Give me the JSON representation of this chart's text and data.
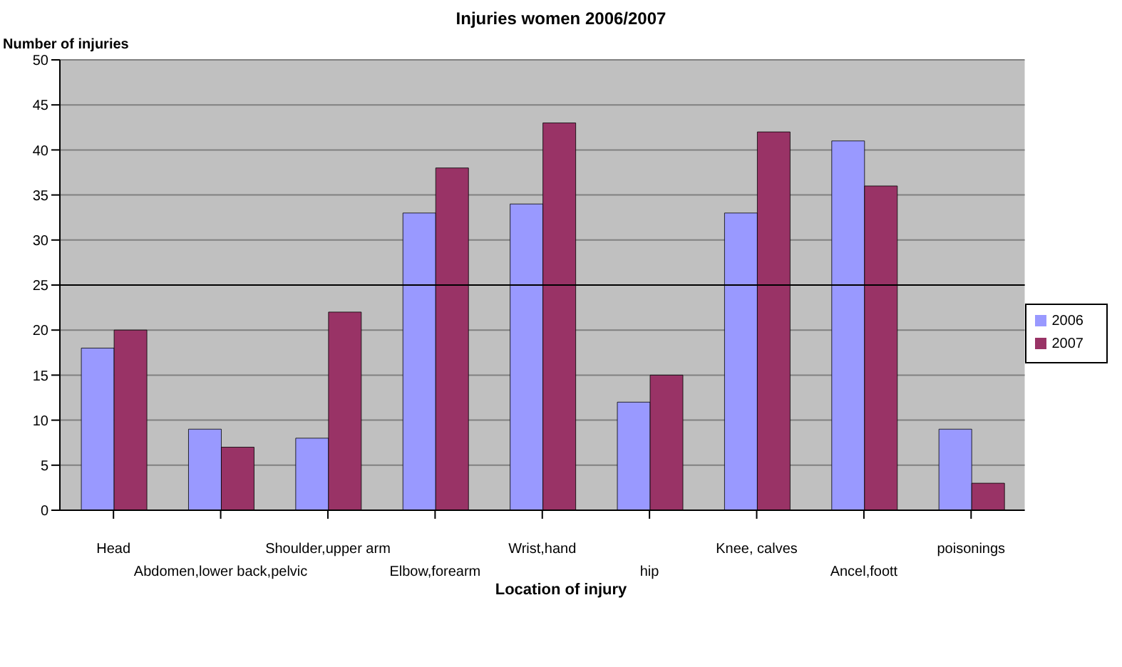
{
  "chart_data": {
    "type": "bar",
    "title": "Injuries women 2006/2007",
    "xlabel": "Location of injury",
    "ylabel": "Number of injuries",
    "categories": [
      "Head",
      "Abdomen,lower back,pelvic",
      "Shoulder,upper arm",
      "Elbow,forearm",
      "Wrist,hand",
      "hip",
      "Knee, calves",
      "Ancel,foott",
      "poisonings"
    ],
    "series": [
      {
        "name": "2006",
        "color": "#9999ff",
        "values": [
          18,
          9,
          8,
          33,
          34,
          12,
          33,
          41,
          9
        ]
      },
      {
        "name": "2007",
        "color": "#993366",
        "values": [
          20,
          7,
          22,
          38,
          43,
          15,
          42,
          36,
          3
        ]
      }
    ],
    "ylim": [
      0,
      50
    ],
    "yticks": [
      0,
      5,
      10,
      15,
      20,
      25,
      30,
      35,
      40,
      45,
      50
    ],
    "grid": "y",
    "legend": "right",
    "ref_lines": [
      {
        "axis": "y",
        "value": 25,
        "color": "#000000"
      }
    ]
  }
}
